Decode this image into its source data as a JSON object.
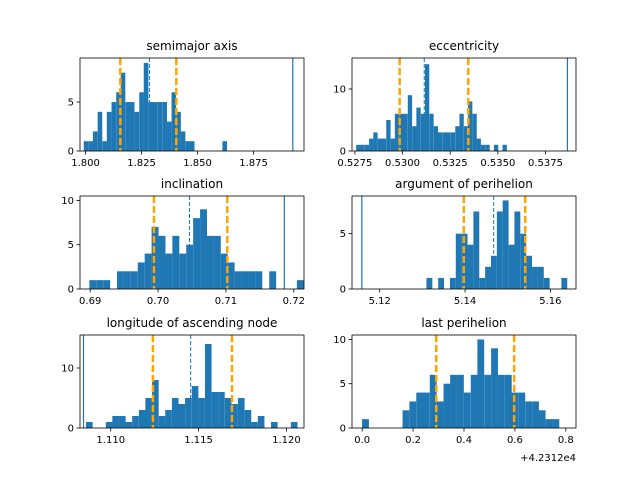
{
  "colors": {
    "bar": "#1f77b4",
    "quantile": "#ffa500",
    "axis": "#000000",
    "background": "#ffffff"
  },
  "chart_data": [
    {
      "type": "histogram",
      "title": "semimajor axis",
      "xlim": [
        1.7975,
        1.8975
      ],
      "ylim": [
        0,
        9.5
      ],
      "bin_width": 0.00206,
      "bins": [
        [
          1.8002,
          1
        ],
        [
          1.8023,
          1
        ],
        [
          1.8043,
          2
        ],
        [
          1.8064,
          4
        ],
        [
          1.8085,
          1
        ],
        [
          1.8105,
          4
        ],
        [
          1.8126,
          5
        ],
        [
          1.8147,
          6
        ],
        [
          1.8167,
          8
        ],
        [
          1.8188,
          5
        ],
        [
          1.8208,
          5
        ],
        [
          1.8229,
          4
        ],
        [
          1.825,
          6
        ],
        [
          1.827,
          9
        ],
        [
          1.8291,
          5
        ],
        [
          1.8311,
          5
        ],
        [
          1.8332,
          5
        ],
        [
          1.8353,
          5
        ],
        [
          1.8373,
          3
        ],
        [
          1.8394,
          6
        ],
        [
          1.8415,
          4
        ],
        [
          1.8435,
          2
        ],
        [
          1.8456,
          1
        ],
        [
          1.8476,
          1
        ],
        [
          1.8621,
          1
        ]
      ],
      "true_value": 1.8925,
      "median": 1.8285,
      "quantiles": [
        1.8155,
        1.8405
      ],
      "xticks": [
        1.8,
        1.825,
        1.85,
        1.875
      ],
      "xtick_labels": [
        "1.800",
        "1.825",
        "1.850",
        "1.875"
      ],
      "yticks": [
        0,
        5
      ],
      "ytick_labels": [
        "0",
        "5"
      ]
    },
    {
      "type": "histogram",
      "title": "eccentricity",
      "xlim": [
        0.52735,
        0.5391
      ],
      "ylim": [
        0,
        15
      ],
      "bin_width": 0.000226,
      "bins": [
        [
          0.52768,
          1
        ],
        [
          0.5279,
          1
        ],
        [
          0.52813,
          1
        ],
        [
          0.52836,
          2
        ],
        [
          0.52858,
          3
        ],
        [
          0.52881,
          2
        ],
        [
          0.52903,
          2
        ],
        [
          0.52926,
          5
        ],
        [
          0.52949,
          2
        ],
        [
          0.52971,
          6
        ],
        [
          0.52994,
          6
        ],
        [
          0.53016,
          6
        ],
        [
          0.53039,
          9
        ],
        [
          0.53062,
          4
        ],
        [
          0.53084,
          7
        ],
        [
          0.53107,
          6
        ],
        [
          0.53129,
          14
        ],
        [
          0.53152,
          6
        ],
        [
          0.53175,
          4
        ],
        [
          0.53197,
          3
        ],
        [
          0.5322,
          3
        ],
        [
          0.53242,
          3
        ],
        [
          0.53265,
          3
        ],
        [
          0.53288,
          4
        ],
        [
          0.5331,
          6
        ],
        [
          0.53333,
          4
        ],
        [
          0.53355,
          8
        ],
        [
          0.53378,
          6
        ],
        [
          0.534,
          2
        ],
        [
          0.53423,
          1
        ],
        [
          0.53446,
          1
        ],
        [
          0.53491,
          1
        ],
        [
          0.53536,
          1
        ]
      ],
      "true_value": 0.53865,
      "median": 0.53114,
      "quantiles": [
        0.52985,
        0.53345
      ],
      "xticks": [
        0.5275,
        0.53,
        0.5325,
        0.535,
        0.5375
      ],
      "xtick_labels": [
        "0.5275",
        "0.5300",
        "0.5325",
        "0.5350",
        "0.5375"
      ],
      "yticks": [
        0,
        10
      ],
      "ytick_labels": [
        "0",
        "10"
      ]
    },
    {
      "type": "histogram",
      "title": "inclination",
      "xlim": [
        0.6885,
        0.7215
      ],
      "ylim": [
        0,
        10.5
      ],
      "bin_width": 0.00102,
      "bins": [
        [
          0.69039,
          1
        ],
        [
          0.69141,
          1
        ],
        [
          0.69243,
          1
        ],
        [
          0.69446,
          2
        ],
        [
          0.69548,
          2
        ],
        [
          0.6965,
          2
        ],
        [
          0.69752,
          3
        ],
        [
          0.69854,
          4
        ],
        [
          0.69956,
          7
        ],
        [
          0.70058,
          6
        ],
        [
          0.7016,
          4
        ],
        [
          0.70262,
          6
        ],
        [
          0.70364,
          4
        ],
        [
          0.70466,
          5
        ],
        [
          0.70568,
          8
        ],
        [
          0.7067,
          9
        ],
        [
          0.70772,
          6
        ],
        [
          0.70873,
          6
        ],
        [
          0.70975,
          4
        ],
        [
          0.71077,
          3
        ],
        [
          0.71179,
          2
        ],
        [
          0.71281,
          2
        ],
        [
          0.71383,
          2
        ],
        [
          0.71485,
          2
        ],
        [
          0.71689,
          2
        ],
        [
          0.72096,
          1
        ]
      ],
      "true_value": 0.7186,
      "median": 0.70463,
      "quantiles": [
        0.6994,
        0.7102
      ],
      "xticks": [
        0.69,
        0.7,
        0.71,
        0.72
      ],
      "xtick_labels": [
        "0.69",
        "0.70",
        "0.71",
        "0.72"
      ],
      "yticks": [
        0,
        5,
        10
      ],
      "ytick_labels": [
        "0",
        "5",
        "10"
      ]
    },
    {
      "type": "histogram",
      "title": "argument of perihelion",
      "xlim": [
        5.1135,
        5.166
      ],
      "ylim": [
        0,
        8.4
      ],
      "bin_width": 0.001375,
      "bins": [
        [
          5.13164,
          1
        ],
        [
          5.13439,
          1
        ],
        [
          5.13714,
          1
        ],
        [
          5.13851,
          5
        ],
        [
          5.13989,
          5
        ],
        [
          5.14126,
          4
        ],
        [
          5.14264,
          7
        ],
        [
          5.14401,
          1
        ],
        [
          5.14539,
          2
        ],
        [
          5.14676,
          3
        ],
        [
          5.14814,
          7
        ],
        [
          5.14951,
          8
        ],
        [
          5.15089,
          4
        ],
        [
          5.15226,
          7
        ],
        [
          5.15364,
          5
        ],
        [
          5.15501,
          3
        ],
        [
          5.15639,
          2
        ],
        [
          5.15776,
          2
        ],
        [
          5.15914,
          1
        ],
        [
          5.16326,
          1
        ]
      ],
      "true_value": 5.1158,
      "median": 5.1467,
      "quantiles": [
        5.1397,
        5.1541
      ],
      "xticks": [
        5.12,
        5.14,
        5.16
      ],
      "xtick_labels": [
        "5.12",
        "5.14",
        "5.16"
      ],
      "yticks": [
        0,
        5
      ],
      "ytick_labels": [
        "0",
        "5"
      ]
    },
    {
      "type": "histogram",
      "title": "longitude of ascending node",
      "xlim": [
        1.10825,
        1.121
      ],
      "ylim": [
        0,
        15.5
      ],
      "bin_width": 0.000376,
      "bins": [
        [
          1.10878,
          1
        ],
        [
          1.10991,
          1
        ],
        [
          1.11028,
          2
        ],
        [
          1.11066,
          2
        ],
        [
          1.11103,
          1
        ],
        [
          1.11141,
          2
        ],
        [
          1.11179,
          3
        ],
        [
          1.11216,
          5
        ],
        [
          1.11254,
          8
        ],
        [
          1.11292,
          2
        ],
        [
          1.11329,
          3
        ],
        [
          1.11367,
          5
        ],
        [
          1.11404,
          4
        ],
        [
          1.11442,
          5
        ],
        [
          1.1148,
          7
        ],
        [
          1.11517,
          5
        ],
        [
          1.11555,
          14
        ],
        [
          1.11593,
          6
        ],
        [
          1.1163,
          6
        ],
        [
          1.11668,
          5
        ],
        [
          1.11705,
          4
        ],
        [
          1.11743,
          5
        ],
        [
          1.11781,
          3
        ],
        [
          1.11818,
          1
        ],
        [
          1.11856,
          2
        ],
        [
          1.11931,
          1
        ],
        [
          1.12044,
          1
        ]
      ],
      "true_value": 1.10845,
      "median": 1.11455,
      "quantiles": [
        1.1124,
        1.1169
      ],
      "xticks": [
        1.11,
        1.115,
        1.12
      ],
      "xtick_labels": [
        "1.110",
        "1.115",
        "1.120"
      ],
      "yticks": [
        0,
        10
      ],
      "ytick_labels": [
        "0",
        "10"
      ]
    },
    {
      "type": "histogram",
      "title": "last perihelion",
      "offset_label": "+4.2312e4",
      "xlim": [
        -0.04,
        0.84
      ],
      "ylim": [
        0,
        10.5
      ],
      "bin_width": 0.0268,
      "bins": [
        [
          0.013,
          1
        ],
        [
          0.172,
          2
        ],
        [
          0.199,
          3
        ],
        [
          0.226,
          4
        ],
        [
          0.252,
          4
        ],
        [
          0.279,
          6
        ],
        [
          0.306,
          3
        ],
        [
          0.333,
          5
        ],
        [
          0.359,
          6
        ],
        [
          0.386,
          6
        ],
        [
          0.413,
          4
        ],
        [
          0.44,
          6
        ],
        [
          0.466,
          10
        ],
        [
          0.493,
          6
        ],
        [
          0.52,
          9
        ],
        [
          0.547,
          6
        ],
        [
          0.574,
          6
        ],
        [
          0.6,
          4
        ],
        [
          0.627,
          4
        ],
        [
          0.654,
          3
        ],
        [
          0.681,
          3
        ],
        [
          0.707,
          2
        ],
        [
          0.734,
          1
        ],
        [
          0.761,
          1
        ]
      ],
      "true_value": null,
      "median": null,
      "quantiles": [
        0.291,
        0.597
      ],
      "xticks": [
        0.0,
        0.2,
        0.4,
        0.6,
        0.8
      ],
      "xtick_labels": [
        "0.0",
        "0.2",
        "0.4",
        "0.6",
        "0.8"
      ],
      "yticks": [
        0,
        5,
        10
      ],
      "ytick_labels": [
        "0",
        "5",
        "10"
      ]
    }
  ]
}
